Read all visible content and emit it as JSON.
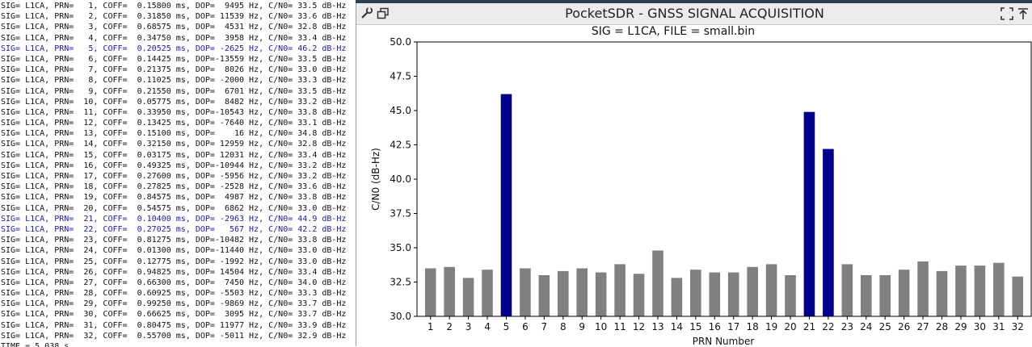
{
  "terminal": {
    "lines": [
      {
        "text": "SIG= L1CA, PRN=   1, COFF=  0.15800 ms, DOP=  9495 Hz, C/N0= 33.5 dB-Hz",
        "hl": false
      },
      {
        "text": "SIG= L1CA, PRN=   2, COFF=  0.31850 ms, DOP= 11539 Hz, C/N0= 33.6 dB-Hz",
        "hl": false
      },
      {
        "text": "SIG= L1CA, PRN=   3, COFF=  0.68575 ms, DOP=  4531 Hz, C/N0= 32.8 dB-Hz",
        "hl": false
      },
      {
        "text": "SIG= L1CA, PRN=   4, COFF=  0.34750 ms, DOP=  3958 Hz, C/N0= 33.4 dB-Hz",
        "hl": false
      },
      {
        "text": "SIG= L1CA, PRN=   5, COFF=  0.20525 ms, DOP= -2625 Hz, C/N0= 46.2 dB-Hz",
        "hl": true
      },
      {
        "text": "SIG= L1CA, PRN=   6, COFF=  0.14425 ms, DOP=-13559 Hz, C/N0= 33.5 dB-Hz",
        "hl": false
      },
      {
        "text": "SIG= L1CA, PRN=   7, COFF=  0.21375 ms, DOP=  8026 Hz, C/N0= 33.0 dB-Hz",
        "hl": false
      },
      {
        "text": "SIG= L1CA, PRN=   8, COFF=  0.11025 ms, DOP= -2000 Hz, C/N0= 33.3 dB-Hz",
        "hl": false
      },
      {
        "text": "SIG= L1CA, PRN=   9, COFF=  0.21550 ms, DOP=  6701 Hz, C/N0= 33.5 dB-Hz",
        "hl": false
      },
      {
        "text": "SIG= L1CA, PRN=  10, COFF=  0.05775 ms, DOP=  8482 Hz, C/N0= 33.2 dB-Hz",
        "hl": false
      },
      {
        "text": "SIG= L1CA, PRN=  11, COFF=  0.33950 ms, DOP=-10543 Hz, C/N0= 33.8 dB-Hz",
        "hl": false
      },
      {
        "text": "SIG= L1CA, PRN=  12, COFF=  0.13425 ms, DOP= -7640 Hz, C/N0= 33.1 dB-Hz",
        "hl": false
      },
      {
        "text": "SIG= L1CA, PRN=  13, COFF=  0.15100 ms, DOP=    16 Hz, C/N0= 34.8 dB-Hz",
        "hl": false
      },
      {
        "text": "SIG= L1CA, PRN=  14, COFF=  0.32150 ms, DOP= 12959 Hz, C/N0= 32.8 dB-Hz",
        "hl": false
      },
      {
        "text": "SIG= L1CA, PRN=  15, COFF=  0.03175 ms, DOP= 12031 Hz, C/N0= 33.4 dB-Hz",
        "hl": false
      },
      {
        "text": "SIG= L1CA, PRN=  16, COFF=  0.49325 ms, DOP=-10944 Hz, C/N0= 33.2 dB-Hz",
        "hl": false
      },
      {
        "text": "SIG= L1CA, PRN=  17, COFF=  0.27600 ms, DOP= -5956 Hz, C/N0= 33.2 dB-Hz",
        "hl": false
      },
      {
        "text": "SIG= L1CA, PRN=  18, COFF=  0.27825 ms, DOP= -2528 Hz, C/N0= 33.6 dB-Hz",
        "hl": false
      },
      {
        "text": "SIG= L1CA, PRN=  19, COFF=  0.84575 ms, DOP=  4987 Hz, C/N0= 33.8 dB-Hz",
        "hl": false
      },
      {
        "text": "SIG= L1CA, PRN=  20, COFF=  0.54575 ms, DOP=  6862 Hz, C/N0= 33.0 dB-Hz",
        "hl": false
      },
      {
        "text": "SIG= L1CA, PRN=  21, COFF=  0.10400 ms, DOP= -2963 Hz, C/N0= 44.9 dB-Hz",
        "hl": true
      },
      {
        "text": "SIG= L1CA, PRN=  22, COFF=  0.27025 ms, DOP=   567 Hz, C/N0= 42.2 dB-Hz",
        "hl": true
      },
      {
        "text": "SIG= L1CA, PRN=  23, COFF=  0.81275 ms, DOP=-10482 Hz, C/N0= 33.8 dB-Hz",
        "hl": false
      },
      {
        "text": "SIG= L1CA, PRN=  24, COFF=  0.01300 ms, DOP=-11440 Hz, C/N0= 33.0 dB-Hz",
        "hl": false
      },
      {
        "text": "SIG= L1CA, PRN=  25, COFF=  0.12775 ms, DOP= -1992 Hz, C/N0= 33.0 dB-Hz",
        "hl": false
      },
      {
        "text": "SIG= L1CA, PRN=  26, COFF=  0.94825 ms, DOP= 14504 Hz, C/N0= 33.4 dB-Hz",
        "hl": false
      },
      {
        "text": "SIG= L1CA, PRN=  27, COFF=  0.66300 ms, DOP=  7450 Hz, C/N0= 34.0 dB-Hz",
        "hl": false
      },
      {
        "text": "SIG= L1CA, PRN=  28, COFF=  0.60925 ms, DOP= -5503 Hz, C/N0= 33.3 dB-Hz",
        "hl": false
      },
      {
        "text": "SIG= L1CA, PRN=  29, COFF=  0.99250 ms, DOP= -9869 Hz, C/N0= 33.7 dB-Hz",
        "hl": false
      },
      {
        "text": "SIG= L1CA, PRN=  30, COFF=  0.66625 ms, DOP=  3095 Hz, C/N0= 33.7 dB-Hz",
        "hl": false
      },
      {
        "text": "SIG= L1CA, PRN=  31, COFF=  0.80475 ms, DOP= 11977 Hz, C/N0= 33.9 dB-Hz",
        "hl": false
      },
      {
        "text": "SIG= L1CA, PRN=  32, COFF=  0.55700 ms, DOP= -5011 Hz, C/N0= 32.9 dB-Hz",
        "hl": false
      },
      {
        "text": "TIME = 5.038 s",
        "hl": false
      }
    ]
  },
  "window": {
    "title": "PocketSDR - GNSS SIGNAL ACQUISITION",
    "icons": [
      "tool-icon",
      "window-restore-icon",
      "fullscreen-icon",
      "pin-icon"
    ]
  },
  "colors": {
    "acquired_bar": "#00008b",
    "normal_bar": "#808080",
    "highlight_text": "#1a1aa8"
  },
  "chart_data": {
    "type": "bar",
    "title": "SIG = L1CA, FILE = small.bin",
    "xlabel": "PRN Number",
    "ylabel": "C/N0 (dB-Hz)",
    "ylim": [
      30.0,
      50.0
    ],
    "yticks": [
      "30.0",
      "32.5",
      "35.0",
      "37.5",
      "40.0",
      "42.5",
      "45.0",
      "47.5",
      "50.0"
    ],
    "categories": [
      "1",
      "2",
      "3",
      "4",
      "5",
      "6",
      "7",
      "8",
      "9",
      "10",
      "11",
      "12",
      "13",
      "14",
      "15",
      "16",
      "17",
      "18",
      "19",
      "20",
      "21",
      "22",
      "23",
      "24",
      "25",
      "26",
      "27",
      "28",
      "29",
      "30",
      "31",
      "32"
    ],
    "values": [
      33.5,
      33.6,
      32.8,
      33.4,
      46.2,
      33.5,
      33.0,
      33.3,
      33.5,
      33.2,
      33.8,
      33.1,
      34.8,
      32.8,
      33.4,
      33.2,
      33.2,
      33.6,
      33.8,
      33.0,
      44.9,
      42.2,
      33.8,
      33.0,
      33.0,
      33.4,
      34.0,
      33.3,
      33.7,
      33.7,
      33.9,
      32.9
    ],
    "acquired": [
      5,
      21,
      22
    ],
    "grid": false,
    "legend": "none"
  }
}
